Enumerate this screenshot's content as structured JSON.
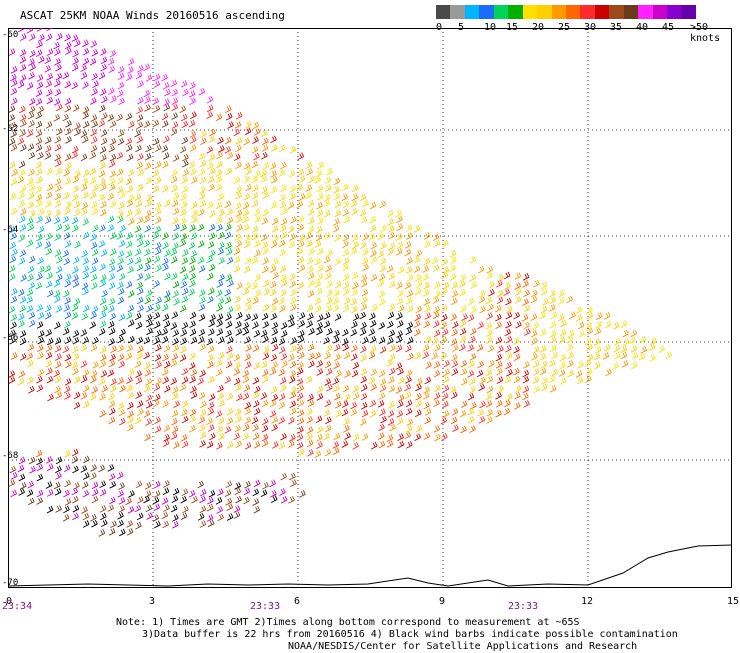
{
  "title": "ASCAT 25KM NOAA Winds 20160516 ascending",
  "legend": {
    "colors": [
      "#4a4a4a",
      "#9a9a9a",
      "#00b5ff",
      "#1a6cff",
      "#00d35a",
      "#00b000",
      "#ffe000",
      "#ffd000",
      "#ff9900",
      "#ff6600",
      "#ff2a2a",
      "#cc0000",
      "#9c4a1a",
      "#6a3a1a",
      "#ff22ff",
      "#cc00cc",
      "#8800cc",
      "#6600aa"
    ],
    "labels": [
      "0",
      "5",
      "10",
      "15",
      "20",
      "25",
      "30",
      "35",
      "40",
      "45",
      ">50 knots"
    ]
  },
  "axis": {
    "x_ticks": [
      "0",
      "3",
      "6",
      "9",
      "12",
      "15"
    ],
    "y_ticks": [
      "-60",
      "-62",
      "-64",
      "-66",
      "-68",
      "-70"
    ],
    "times": [
      "23:34",
      "23:33",
      "23:33"
    ]
  },
  "notes": [
    "Note: 1) Times are GMT 2)Times along bottom correspond to measurement at ~65S",
    "3)Data buffer is 22 hrs from 20160516 4) Black wind barbs indicate possible contamination",
    "NOAA/NESDIS/Center for Satellite Applications and Research"
  ]
}
